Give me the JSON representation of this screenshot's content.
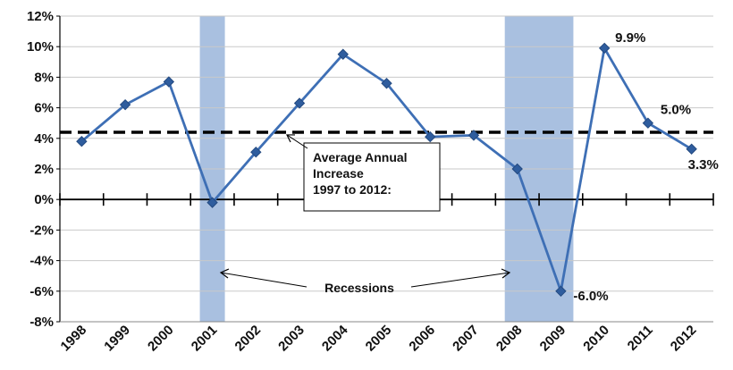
{
  "chart_data": {
    "type": "line",
    "title": "",
    "xlabel": "",
    "ylabel": "",
    "ylim": [
      -8,
      12
    ],
    "y_tick_step": 2,
    "y_tick_format": "percent",
    "grid": "horizontal",
    "categories": [
      "1998",
      "1999",
      "2000",
      "2001",
      "2002",
      "2003",
      "2004",
      "2005",
      "2006",
      "2007",
      "2008",
      "2009",
      "2010",
      "2011",
      "2012"
    ],
    "series": [
      {
        "values": [
          3.8,
          6.2,
          7.7,
          -0.2,
          3.1,
          6.3,
          9.5,
          7.6,
          4.1,
          4.2,
          2.0,
          -6.0,
          9.9,
          5.0,
          3.3
        ],
        "color": "#3E6FB5",
        "marker": "diamond"
      }
    ],
    "average_line": {
      "value": 4.4,
      "style": "dashed",
      "color": "#000000"
    },
    "recession_bands": [
      {
        "from": "2001",
        "to": "2001"
      },
      {
        "from": "2008",
        "to": "2009"
      }
    ],
    "recession_color": "#A9C0E0",
    "data_labels": [
      {
        "category": "2009",
        "text": "-6.0%"
      },
      {
        "category": "2010",
        "text": "9.9%"
      },
      {
        "category": "2011",
        "text": "5.0%"
      },
      {
        "category": "2012",
        "text": "3.3%"
      }
    ],
    "annotations": {
      "average_box_lines": [
        "Average Annual",
        "Increase",
        "1997 to 2012:"
      ],
      "recessions_label": "Recessions"
    }
  }
}
